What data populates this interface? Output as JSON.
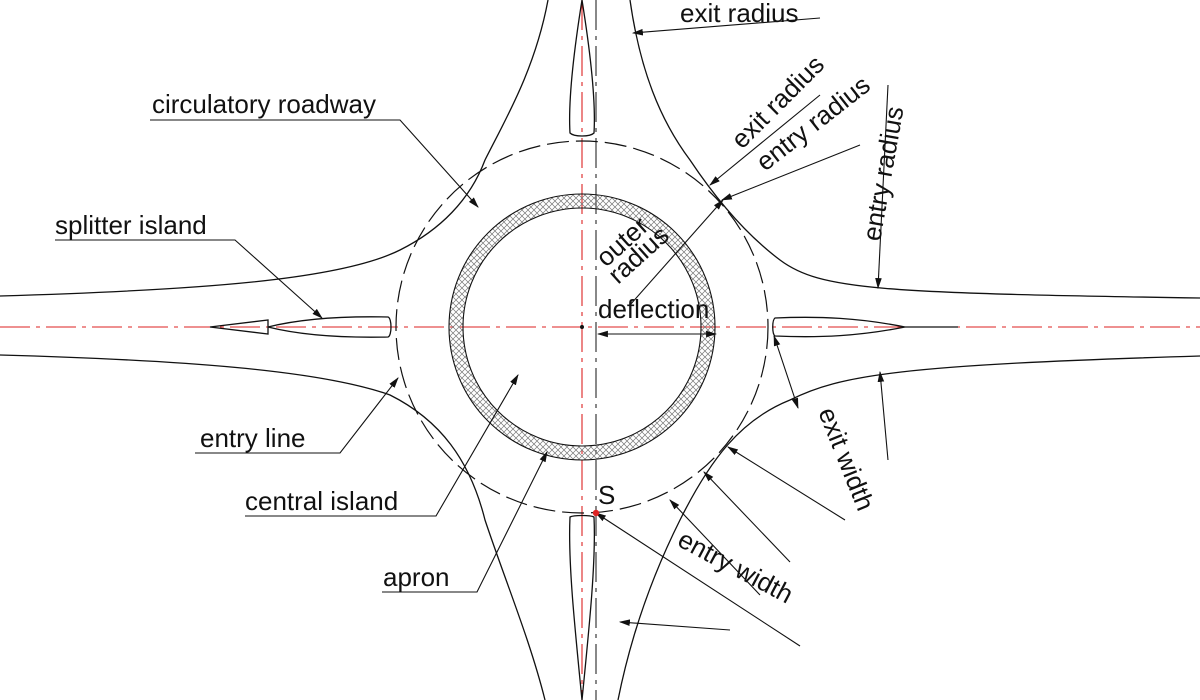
{
  "labels": {
    "exit_radius_top": "exit radius",
    "exit_radius_diag": "exit radius",
    "entry_radius_diag": "entry radius",
    "entry_radius_vert": "entry radius",
    "circulatory_roadway": "circulatory roadway",
    "splitter_island": "splitter island",
    "outer": "outer",
    "radius": "radius",
    "deflection": "deflection",
    "entry_line": "entry line",
    "central_island": "central island",
    "apron": "apron",
    "point_s": "S",
    "entry_width": "entry width",
    "exit_width": "exit width"
  },
  "colors": {
    "line": "#111111",
    "centerline": "#dd2222",
    "point": "#dd2222"
  }
}
